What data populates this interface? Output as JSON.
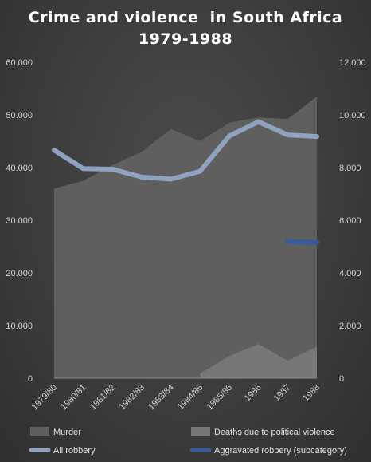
{
  "chart_data": {
    "type": "area",
    "title": "Crime and violence  in South Africa",
    "subtitle": "1979-1988",
    "categories": [
      "1979/80",
      "1980/81",
      "1981/82",
      "1982/83",
      "1983/84",
      "1984/85",
      "1985/86",
      "1986",
      "1987",
      "1988"
    ],
    "y_left": {
      "range": [
        0,
        60000
      ],
      "ticks": [
        "0",
        "10.000",
        "20.000",
        "30.000",
        "40.000",
        "50.000",
        "60.000"
      ]
    },
    "y_right": {
      "range": [
        0,
        12000
      ],
      "ticks": [
        "0",
        "2.000",
        "4.000",
        "6.000",
        "8.000",
        "10.000",
        "12.000"
      ]
    },
    "grid": false,
    "legend_position": "bottom",
    "series": [
      {
        "name": "Murder",
        "kind": "area",
        "axis": "left",
        "color": "#5f5f5f",
        "values": [
          36000,
          37500,
          40500,
          43000,
          47300,
          45000,
          48500,
          49500,
          49200,
          53500
        ]
      },
      {
        "name": "Deaths due to political violence",
        "kind": "area",
        "axis": "left",
        "color": "#777777",
        "values": [
          null,
          null,
          null,
          null,
          null,
          900,
          4200,
          6500,
          3300,
          6000
        ]
      },
      {
        "name": "All robbery",
        "kind": "line",
        "axis": "left",
        "color": "#8fa2bf",
        "values": [
          43300,
          39800,
          39700,
          38200,
          37800,
          39300,
          46000,
          48700,
          46200,
          45900
        ]
      },
      {
        "name": "Aggravated robbery (subcategory)",
        "kind": "line",
        "axis": "left",
        "color": "#3a5a9a",
        "values": [
          null,
          null,
          null,
          null,
          null,
          null,
          null,
          null,
          26000,
          25800
        ]
      }
    ]
  }
}
